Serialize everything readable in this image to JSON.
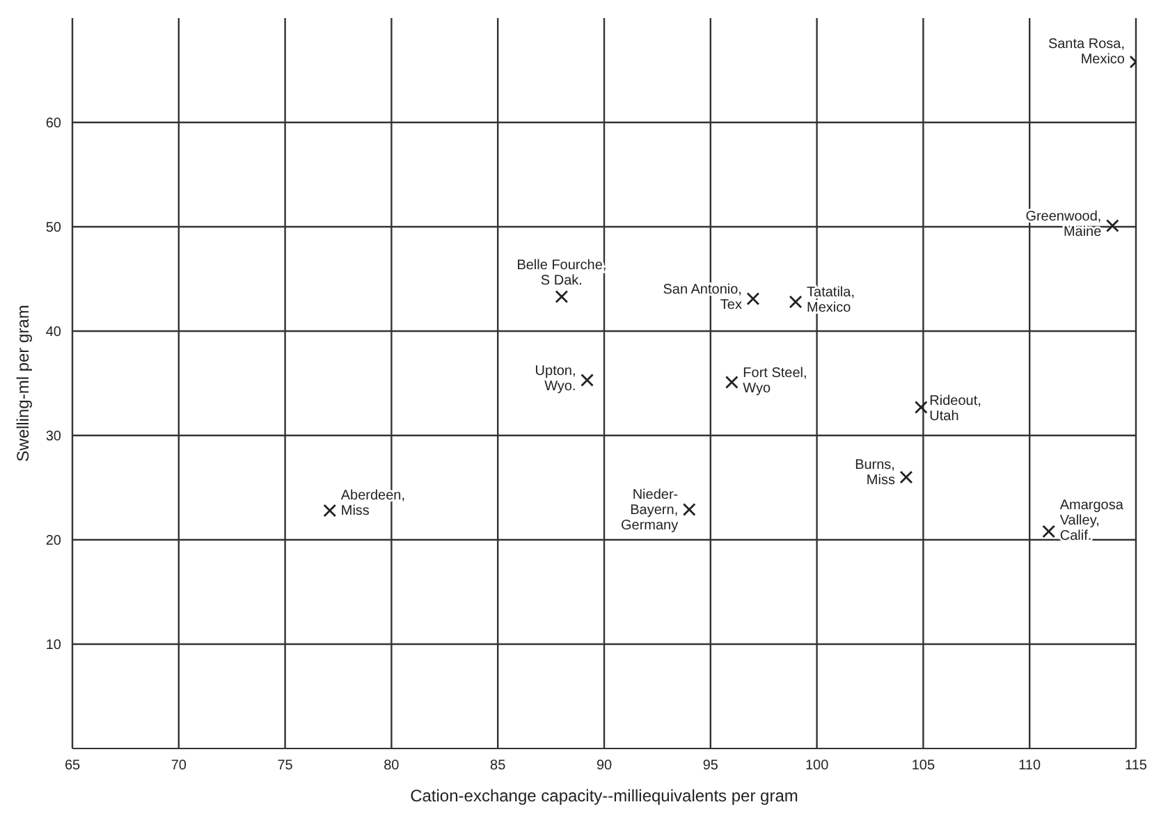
{
  "chart_data": {
    "type": "scatter",
    "xlabel": "Cation-exchange capacity--milliequivalents per gram",
    "ylabel": "Swelling-ml per gram",
    "x": [
      77.1,
      88.0,
      89.2,
      97.0,
      99.0,
      96.0,
      115.0,
      113.9,
      104.9,
      104.2,
      94.0,
      110.9
    ],
    "series": [
      {
        "color": "#222222",
        "values": [
          22.8,
          43.3,
          35.3,
          43.1,
          42.8,
          35.1,
          65.8,
          50.1,
          32.7,
          26.0,
          22.9,
          20.8
        ]
      }
    ],
    "annotations": [
      {
        "text": "Aberdeen,\nMiss",
        "x": 77.1,
        "y": 22.8
      },
      {
        "text": "Belle Fourche,\nS Dak.",
        "x": 88.0,
        "y": 43.3
      },
      {
        "text": "Upton,\nWyo.",
        "x": 89.2,
        "y": 35.3
      },
      {
        "text": "San Antonio,\nTex",
        "x": 97.0,
        "y": 43.1
      },
      {
        "text": "Tatatila,\nMexico",
        "x": 99.0,
        "y": 42.8
      },
      {
        "text": "Fort Steel,\nWyo",
        "x": 96.0,
        "y": 35.1
      },
      {
        "text": "Santa Rosa,\nMexico",
        "x": 115.0,
        "y": 65.8
      },
      {
        "text": "Greenwood,\nMaine",
        "x": 113.9,
        "y": 50.1
      },
      {
        "text": "Rideout,\nUtah",
        "x": 104.9,
        "y": 32.7
      },
      {
        "text": "Burns,\nMiss",
        "x": 104.2,
        "y": 26.0
      },
      {
        "text": "Nieder-\nBayern,\nGermany",
        "x": 94.0,
        "y": 22.9
      },
      {
        "text": "Amargosa\nValley,\nCalif.",
        "x": 110.9,
        "y": 20.8
      }
    ],
    "xlim": [
      65,
      115
    ],
    "xticks": [
      65,
      70,
      75,
      80,
      85,
      90,
      95,
      100,
      105,
      110,
      115
    ],
    "ylim": [
      0,
      70
    ],
    "yticks": [
      10,
      20,
      30,
      40,
      50,
      60
    ],
    "grid": true,
    "marker": "cross",
    "legend": false
  }
}
